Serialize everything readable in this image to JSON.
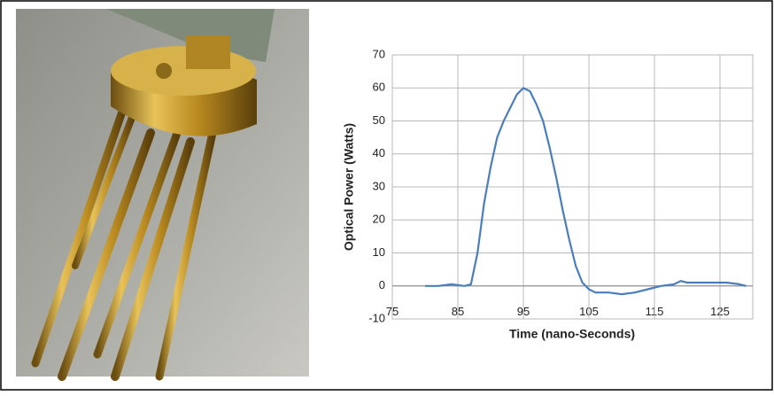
{
  "chart_data": {
    "type": "line",
    "x_label": "Time (nano-Seconds)",
    "y_label": "Optical Power (Watts)",
    "x": [
      80,
      82,
      84,
      86,
      87,
      88,
      89,
      90,
      91,
      92,
      93,
      94,
      95,
      96,
      97,
      98,
      99,
      100,
      101,
      102,
      103,
      104,
      105,
      106,
      108,
      110,
      112,
      114,
      116,
      118,
      119,
      120,
      122,
      124,
      126,
      128,
      129
    ],
    "values": [
      0,
      0,
      0.5,
      0,
      0.5,
      10,
      25,
      36,
      45,
      50,
      54,
      58,
      60,
      59,
      55,
      50,
      42,
      33,
      23,
      14,
      6,
      1,
      -1,
      -2,
      -2,
      -2.5,
      -2,
      -1,
      0,
      0.5,
      1.5,
      1,
      1,
      1,
      1,
      0.5,
      0
    ],
    "color": "#4a7ebb",
    "xlim": [
      75,
      130
    ],
    "xticks": [
      75,
      85,
      95,
      105,
      115,
      125
    ],
    "ylim": [
      -10,
      70
    ],
    "yticks": [
      -10,
      0,
      10,
      20,
      30,
      40,
      50,
      60,
      70
    ],
    "grid": true
  }
}
